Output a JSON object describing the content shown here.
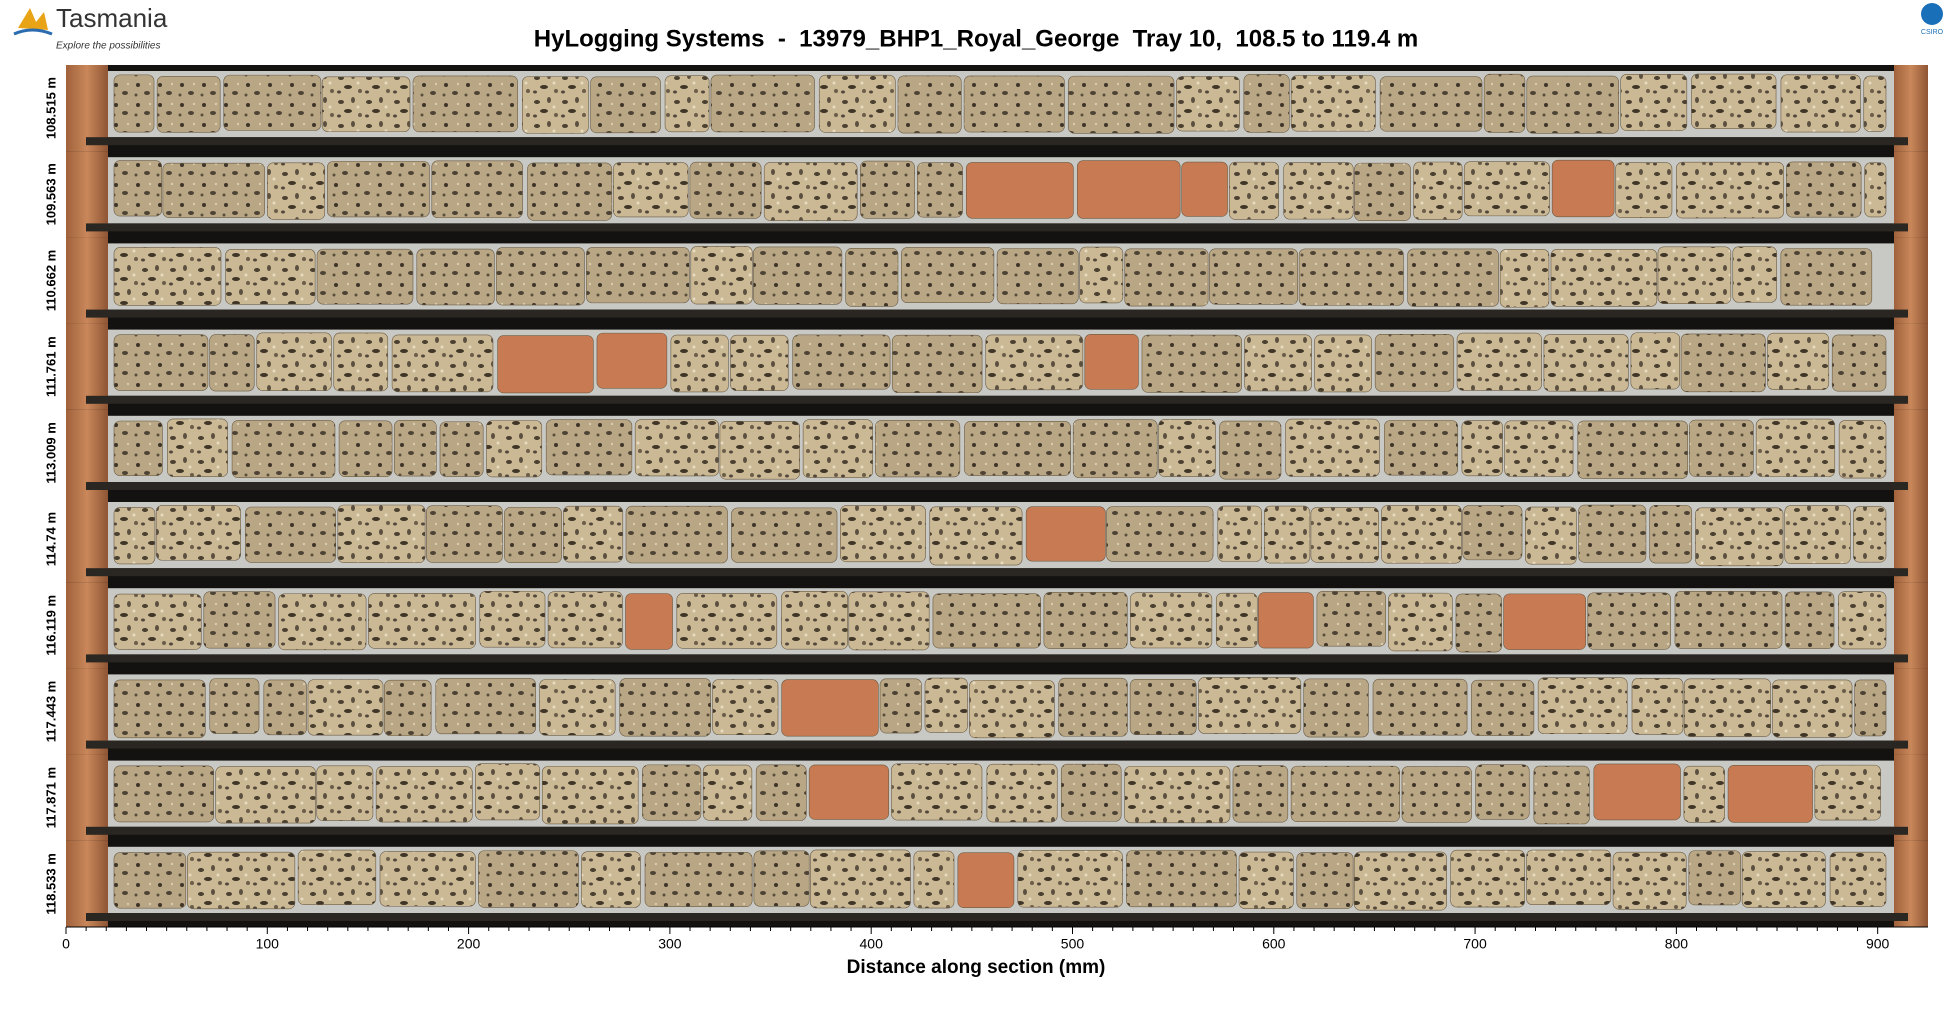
{
  "logo": {
    "name": "Tasmania",
    "tagline": "Explore the possibilities"
  },
  "partner_logo": "CSIRO",
  "chart_data": {
    "type": "image",
    "title": "HyLogging Systems  -  13979_BHP1_Royal_George  Tray 10,  108.5 to 119.4 m",
    "row_labels": [
      "108.515 m",
      "109.563 m",
      "110.662 m",
      "111.761 m",
      "113.009 m",
      "114.74 m",
      "116.119 m",
      "117.443 m",
      "117.871 m",
      "118.533 m"
    ],
    "xlabel": "Distance along section (mm)",
    "xlim": [
      0,
      925
    ],
    "xticks": [
      0,
      100,
      200,
      300,
      400,
      500,
      600,
      700,
      800,
      900
    ]
  }
}
